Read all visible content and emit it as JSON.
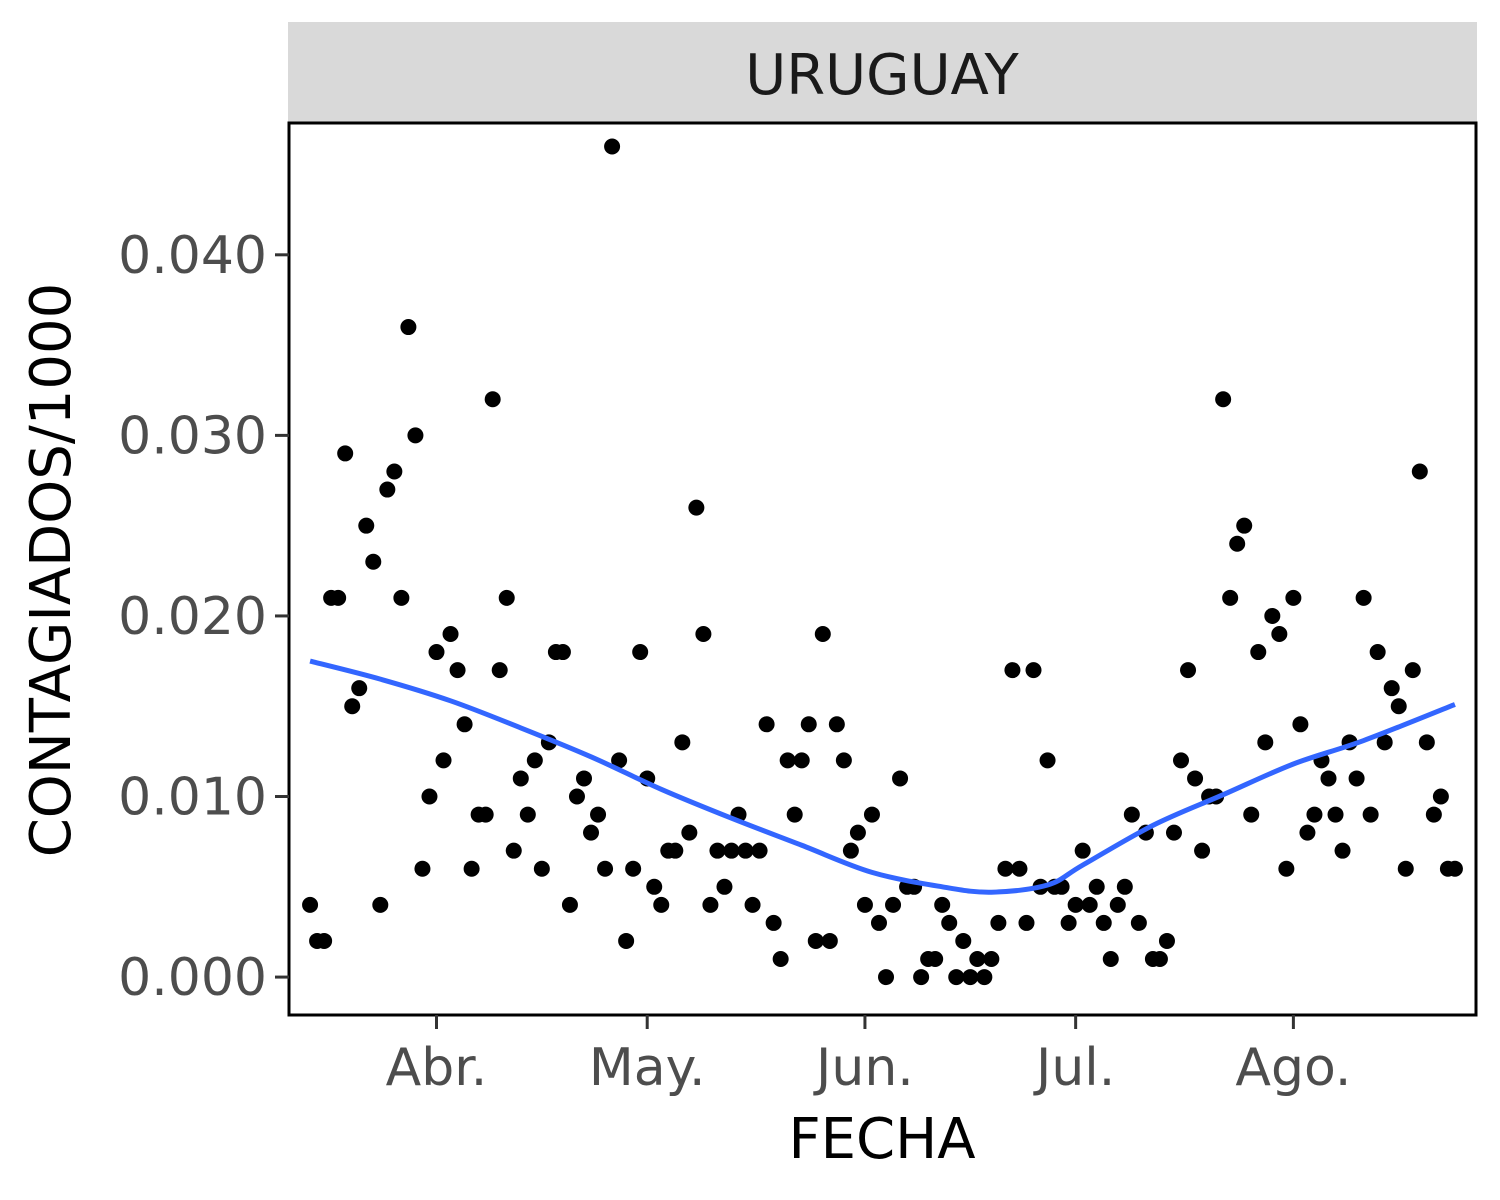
{
  "chart_data": {
    "type": "scatter",
    "facet_label": "URUGUAY",
    "xlabel": "FECHA",
    "ylabel": "CONTAGIADOS/1000",
    "x_unit": "day index (day 0 = first plotted day, mid-March)",
    "xlim": [
      -3,
      166
    ],
    "ylim": [
      -0.0021,
      0.0473
    ],
    "x_ticks": [
      {
        "value": 18,
        "label": "Abr."
      },
      {
        "value": 48,
        "label": "May."
      },
      {
        "value": 79,
        "label": "Jun."
      },
      {
        "value": 109,
        "label": "Jul."
      },
      {
        "value": 140,
        "label": "Ago."
      }
    ],
    "y_ticks": [
      {
        "value": 0.0,
        "label": "0.000"
      },
      {
        "value": 0.01,
        "label": "0.010"
      },
      {
        "value": 0.02,
        "label": "0.020"
      },
      {
        "value": 0.03,
        "label": "0.030"
      },
      {
        "value": 0.04,
        "label": "0.040"
      }
    ],
    "points": [
      [
        0,
        0.004
      ],
      [
        1,
        0.002
      ],
      [
        2,
        0.002
      ],
      [
        3,
        0.021
      ],
      [
        4,
        0.021
      ],
      [
        5,
        0.029
      ],
      [
        6,
        0.015
      ],
      [
        7,
        0.016
      ],
      [
        8,
        0.025
      ],
      [
        9,
        0.023
      ],
      [
        10,
        0.004
      ],
      [
        11,
        0.027
      ],
      [
        12,
        0.028
      ],
      [
        13,
        0.021
      ],
      [
        14,
        0.036
      ],
      [
        15,
        0.03
      ],
      [
        16,
        0.006
      ],
      [
        17,
        0.01
      ],
      [
        18,
        0.018
      ],
      [
        19,
        0.012
      ],
      [
        20,
        0.019
      ],
      [
        21,
        0.017
      ],
      [
        22,
        0.014
      ],
      [
        23,
        0.006
      ],
      [
        24,
        0.009
      ],
      [
        25,
        0.009
      ],
      [
        26,
        0.032
      ],
      [
        27,
        0.017
      ],
      [
        28,
        0.021
      ],
      [
        29,
        0.007
      ],
      [
        30,
        0.011
      ],
      [
        31,
        0.009
      ],
      [
        32,
        0.012
      ],
      [
        33,
        0.006
      ],
      [
        34,
        0.013
      ],
      [
        35,
        0.018
      ],
      [
        36,
        0.018
      ],
      [
        37,
        0.004
      ],
      [
        38,
        0.01
      ],
      [
        39,
        0.011
      ],
      [
        40,
        0.008
      ],
      [
        41,
        0.009
      ],
      [
        42,
        0.006
      ],
      [
        43,
        0.046
      ],
      [
        44,
        0.012
      ],
      [
        45,
        0.002
      ],
      [
        46,
        0.006
      ],
      [
        47,
        0.018
      ],
      [
        48,
        0.011
      ],
      [
        49,
        0.005
      ],
      [
        50,
        0.004
      ],
      [
        51,
        0.007
      ],
      [
        52,
        0.007
      ],
      [
        53,
        0.013
      ],
      [
        54,
        0.008
      ],
      [
        55,
        0.026
      ],
      [
        56,
        0.019
      ],
      [
        57,
        0.004
      ],
      [
        58,
        0.007
      ],
      [
        59,
        0.005
      ],
      [
        60,
        0.007
      ],
      [
        61,
        0.009
      ],
      [
        62,
        0.007
      ],
      [
        63,
        0.004
      ],
      [
        64,
        0.007
      ],
      [
        65,
        0.014
      ],
      [
        66,
        0.003
      ],
      [
        67,
        0.001
      ],
      [
        68,
        0.012
      ],
      [
        69,
        0.009
      ],
      [
        70,
        0.012
      ],
      [
        71,
        0.014
      ],
      [
        72,
        0.002
      ],
      [
        73,
        0.019
      ],
      [
        74,
        0.002
      ],
      [
        75,
        0.014
      ],
      [
        76,
        0.012
      ],
      [
        77,
        0.007
      ],
      [
        78,
        0.008
      ],
      [
        79,
        0.004
      ],
      [
        80,
        0.009
      ],
      [
        81,
        0.003
      ],
      [
        82,
        0.0
      ],
      [
        83,
        0.004
      ],
      [
        84,
        0.011
      ],
      [
        85,
        0.005
      ],
      [
        86,
        0.005
      ],
      [
        87,
        0.0
      ],
      [
        88,
        0.001
      ],
      [
        89,
        0.001
      ],
      [
        90,
        0.004
      ],
      [
        91,
        0.003
      ],
      [
        92,
        0.0
      ],
      [
        93,
        0.002
      ],
      [
        94,
        0.0
      ],
      [
        95,
        0.001
      ],
      [
        96,
        0.0
      ],
      [
        97,
        0.001
      ],
      [
        98,
        0.003
      ],
      [
        99,
        0.006
      ],
      [
        100,
        0.017
      ],
      [
        101,
        0.006
      ],
      [
        102,
        0.003
      ],
      [
        103,
        0.017
      ],
      [
        104,
        0.005
      ],
      [
        105,
        0.012
      ],
      [
        106,
        0.005
      ],
      [
        107,
        0.005
      ],
      [
        108,
        0.003
      ],
      [
        109,
        0.004
      ],
      [
        110,
        0.007
      ],
      [
        111,
        0.004
      ],
      [
        112,
        0.005
      ],
      [
        113,
        0.003
      ],
      [
        114,
        0.001
      ],
      [
        115,
        0.004
      ],
      [
        116,
        0.005
      ],
      [
        117,
        0.009
      ],
      [
        118,
        0.003
      ],
      [
        119,
        0.008
      ],
      [
        120,
        0.001
      ],
      [
        121,
        0.001
      ],
      [
        122,
        0.002
      ],
      [
        123,
        0.008
      ],
      [
        124,
        0.012
      ],
      [
        125,
        0.017
      ],
      [
        126,
        0.011
      ],
      [
        127,
        0.007
      ],
      [
        128,
        0.01
      ],
      [
        129,
        0.01
      ],
      [
        130,
        0.032
      ],
      [
        131,
        0.021
      ],
      [
        132,
        0.024
      ],
      [
        133,
        0.025
      ],
      [
        134,
        0.009
      ],
      [
        135,
        0.018
      ],
      [
        136,
        0.013
      ],
      [
        137,
        0.02
      ],
      [
        138,
        0.019
      ],
      [
        139,
        0.006
      ],
      [
        140,
        0.021
      ],
      [
        141,
        0.014
      ],
      [
        142,
        0.008
      ],
      [
        143,
        0.009
      ],
      [
        144,
        0.012
      ],
      [
        145,
        0.011
      ],
      [
        146,
        0.009
      ],
      [
        147,
        0.007
      ],
      [
        148,
        0.013
      ],
      [
        149,
        0.011
      ],
      [
        150,
        0.021
      ],
      [
        151,
        0.009
      ],
      [
        152,
        0.018
      ],
      [
        153,
        0.013
      ],
      [
        154,
        0.016
      ],
      [
        155,
        0.015
      ],
      [
        156,
        0.006
      ],
      [
        157,
        0.017
      ],
      [
        158,
        0.028
      ],
      [
        159,
        0.013
      ],
      [
        160,
        0.009
      ],
      [
        161,
        0.01
      ],
      [
        162,
        0.006
      ],
      [
        163,
        0.006
      ]
    ],
    "smooth_line": {
      "color": "#3366ff",
      "points": [
        [
          0,
          0.0175
        ],
        [
          10,
          0.0165
        ],
        [
          20,
          0.0153
        ],
        [
          30,
          0.0138
        ],
        [
          40,
          0.0122
        ],
        [
          50,
          0.0104
        ],
        [
          60,
          0.0088
        ],
        [
          70,
          0.0073
        ],
        [
          80,
          0.0058
        ],
        [
          90,
          0.005
        ],
        [
          97,
          0.0047
        ],
        [
          105,
          0.0051
        ],
        [
          110,
          0.0062
        ],
        [
          120,
          0.0084
        ],
        [
          130,
          0.0101
        ],
        [
          140,
          0.0118
        ],
        [
          150,
          0.0131
        ],
        [
          163,
          0.0151
        ]
      ]
    },
    "grid": false,
    "point_color": "#000000",
    "strip_background": "#d9d9d9"
  }
}
